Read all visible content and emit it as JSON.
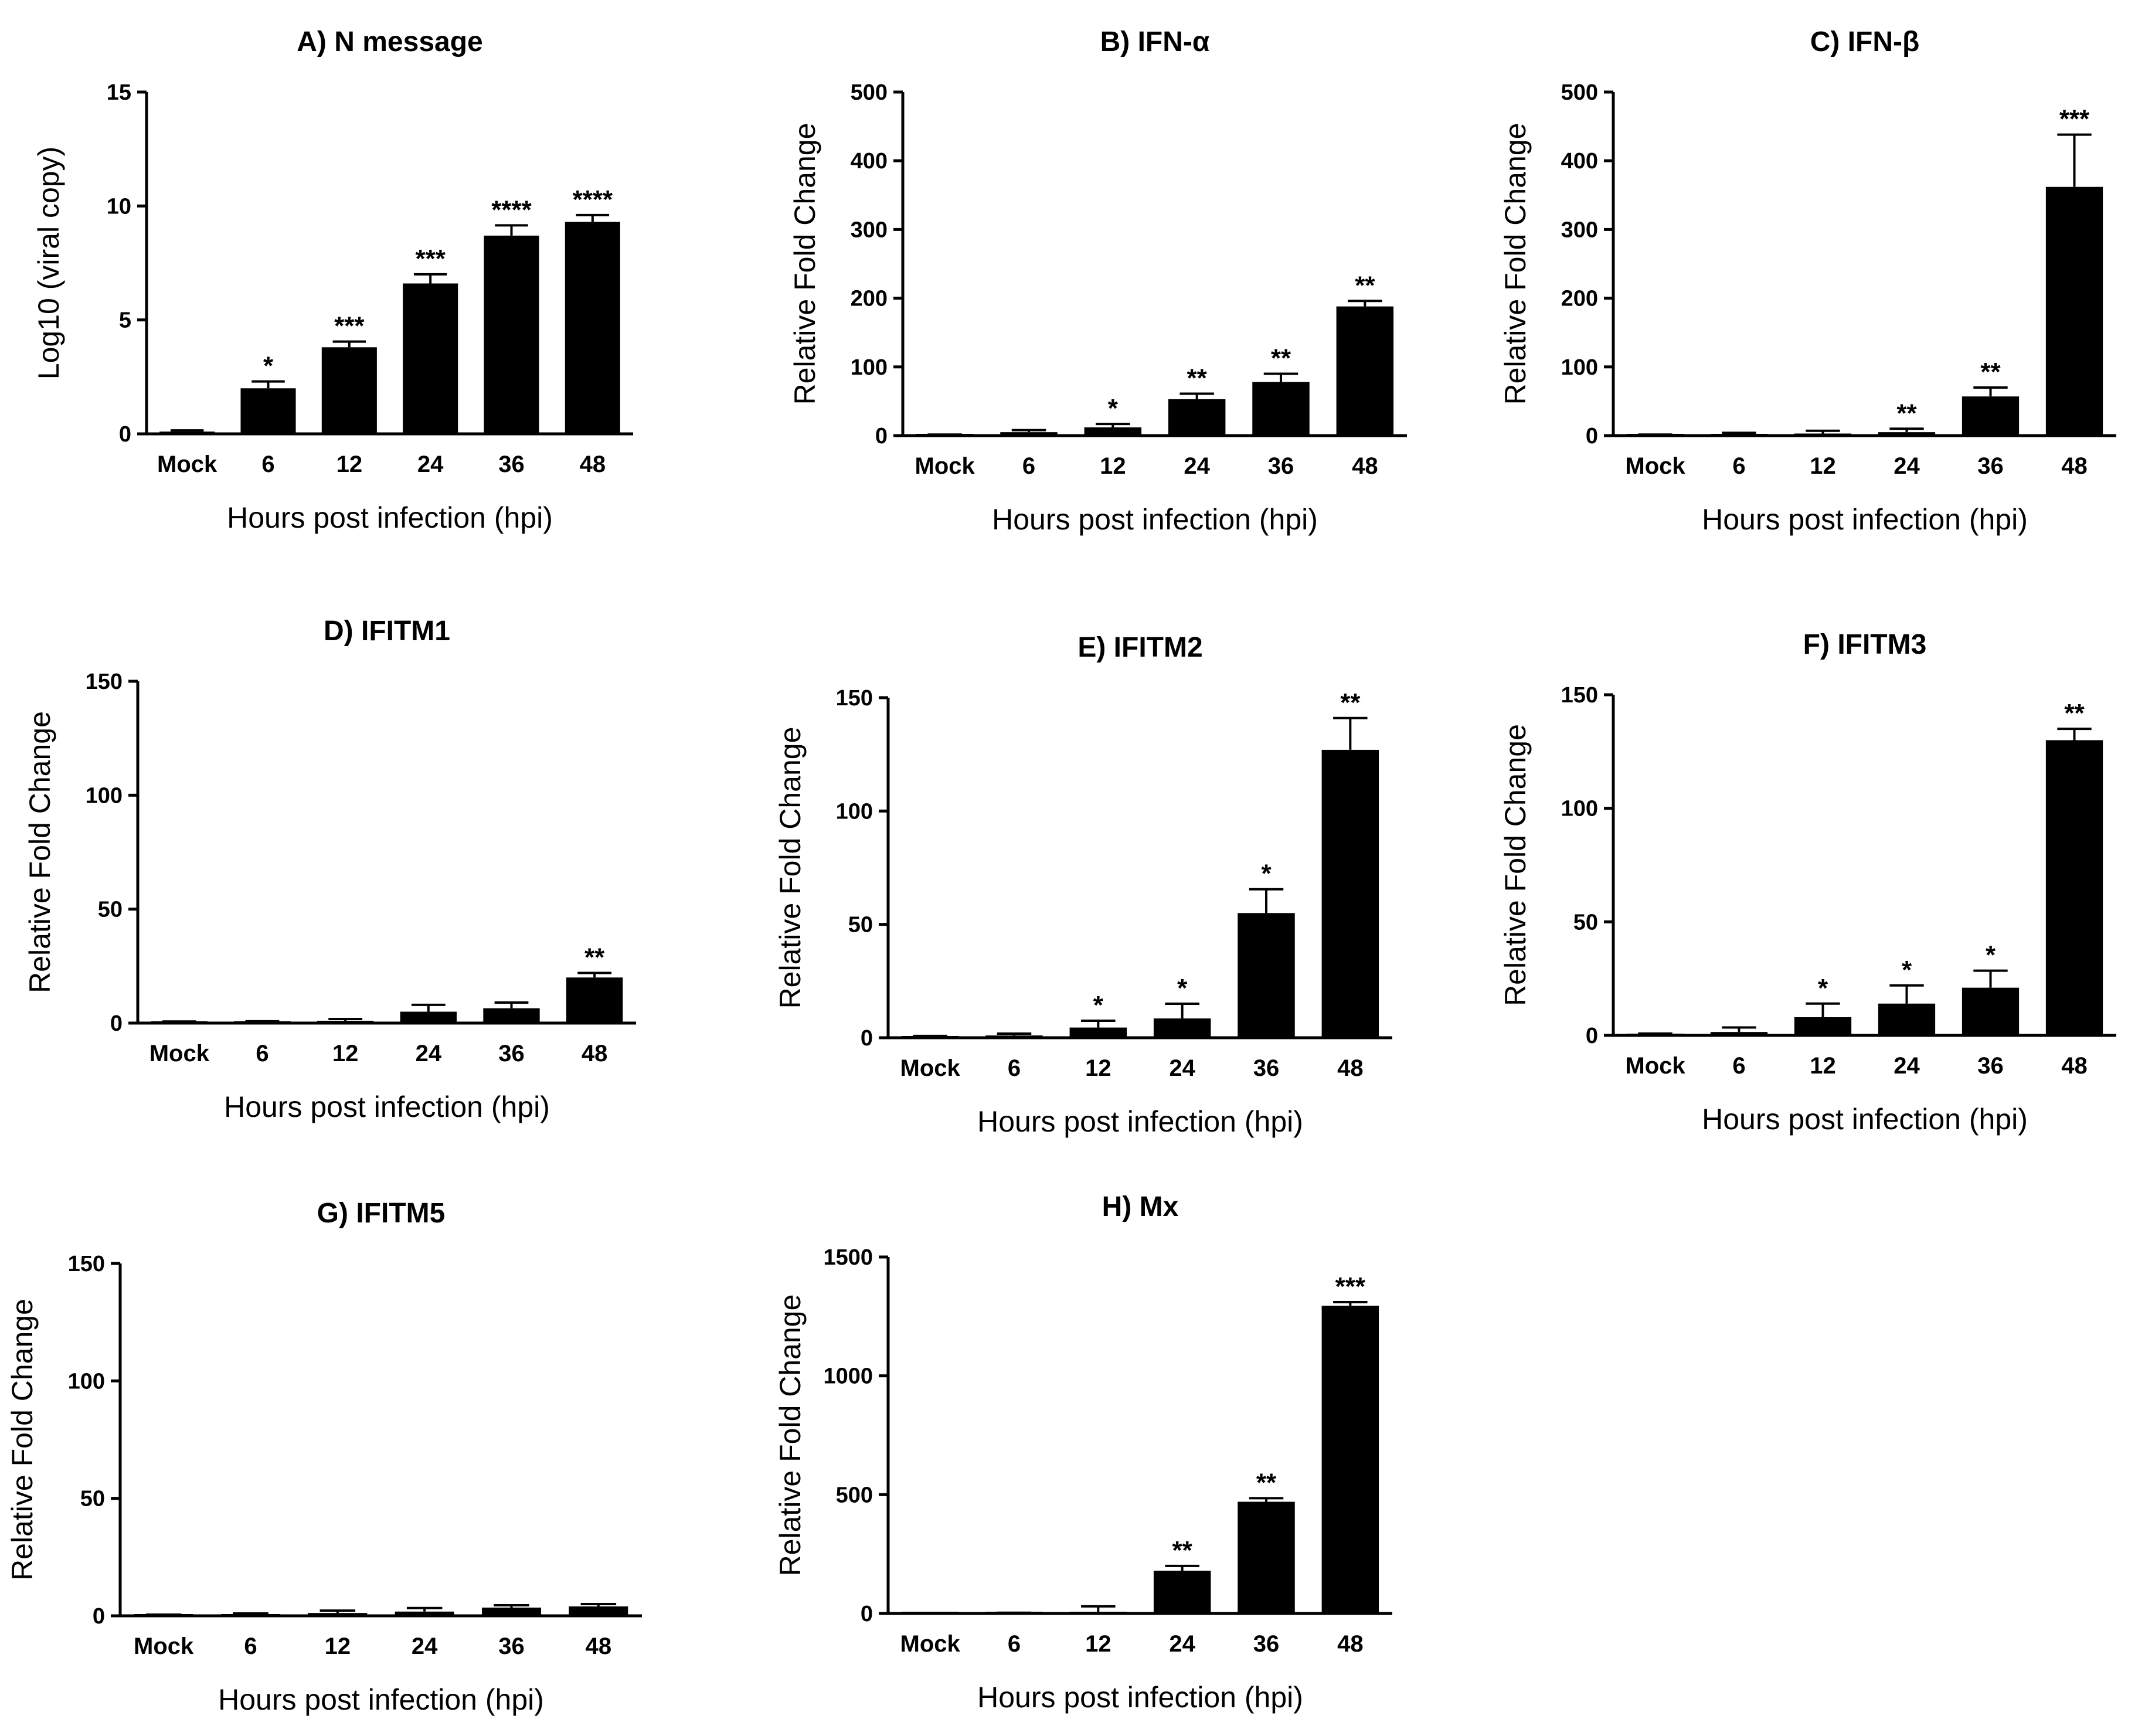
{
  "chart_data": [
    {
      "id": "A",
      "type": "bar",
      "title": "A) N message",
      "xlabel": "Hours post infection (hpi)",
      "ylabel": "Log10 (viral copy)",
      "categories": [
        "Mock",
        "6",
        "12",
        "24",
        "36",
        "48"
      ],
      "values": [
        0.1,
        2.0,
        3.8,
        6.6,
        8.7,
        9.3
      ],
      "errors": [
        0.05,
        0.3,
        0.25,
        0.4,
        0.45,
        0.3
      ],
      "significance": [
        "",
        "*",
        "***",
        "***",
        "****",
        "****"
      ],
      "ylim": [
        0,
        15
      ],
      "yticks": [
        0,
        5,
        10,
        15
      ]
    },
    {
      "id": "B",
      "type": "bar",
      "title": "B) IFN-α",
      "xlabel": "Hours post infection (hpi)",
      "ylabel": "Relative Fold Change",
      "categories": [
        "Mock",
        "6",
        "12",
        "24",
        "36",
        "48"
      ],
      "values": [
        1,
        5,
        12,
        53,
        78,
        188
      ],
      "errors": [
        0.5,
        3,
        5,
        8,
        12,
        8
      ],
      "significance": [
        "",
        "",
        "*",
        "**",
        "**",
        "**"
      ],
      "ylim": [
        0,
        500
      ],
      "yticks": [
        0,
        100,
        200,
        300,
        400,
        500
      ]
    },
    {
      "id": "C",
      "type": "bar",
      "title": "C) IFN-β",
      "xlabel": "Hours post infection (hpi)",
      "ylabel": "Relative Fold Change",
      "categories": [
        "Mock",
        "6",
        "12",
        "24",
        "36",
        "48"
      ],
      "values": [
        1,
        2,
        3,
        5,
        57,
        362
      ],
      "errors": [
        0.5,
        2,
        4,
        5,
        13,
        76
      ],
      "significance": [
        "",
        "",
        "",
        "**",
        "**",
        "***"
      ],
      "ylim": [
        0,
        500
      ],
      "yticks": [
        0,
        100,
        200,
        300,
        400,
        500
      ]
    },
    {
      "id": "D",
      "type": "bar",
      "title": "D) IFITM1",
      "xlabel": "Hours post infection (hpi)",
      "ylabel": "Relative Fold Change",
      "categories": [
        "Mock",
        "6",
        "12",
        "24",
        "36",
        "48"
      ],
      "values": [
        0.5,
        0.5,
        1,
        5,
        6.5,
        20
      ],
      "errors": [
        0.2,
        0.3,
        0.8,
        3,
        2.5,
        2
      ],
      "significance": [
        "",
        "",
        "",
        "",
        "",
        "**"
      ],
      "ylim": [
        0,
        150
      ],
      "yticks": [
        0,
        50,
        100,
        150
      ]
    },
    {
      "id": "E",
      "type": "bar",
      "title": "E) IFITM2",
      "xlabel": "Hours post infection (hpi)",
      "ylabel": "Relative Fold Change",
      "categories": [
        "Mock",
        "6",
        "12",
        "24",
        "36",
        "48"
      ],
      "values": [
        0.5,
        1,
        4.5,
        8.5,
        55,
        127
      ],
      "errors": [
        0.3,
        0.8,
        3,
        6.5,
        10.5,
        14
      ],
      "significance": [
        "",
        "",
        "*",
        "*",
        "*",
        "**"
      ],
      "ylim": [
        0,
        150
      ],
      "yticks": [
        0,
        50,
        100,
        150
      ]
    },
    {
      "id": "F",
      "type": "bar",
      "title": "F) IFITM3",
      "xlabel": "Hours post infection (hpi)",
      "ylabel": "Relative Fold Change",
      "categories": [
        "Mock",
        "6",
        "12",
        "24",
        "36",
        "48"
      ],
      "values": [
        0.5,
        1.5,
        8,
        14,
        21,
        130
      ],
      "errors": [
        0.3,
        2,
        6,
        8,
        7.5,
        5
      ],
      "significance": [
        "",
        "",
        "*",
        "*",
        "*",
        "**"
      ],
      "ylim": [
        0,
        150
      ],
      "yticks": [
        0,
        50,
        100,
        150
      ]
    },
    {
      "id": "G",
      "type": "bar",
      "title": "G) IFITM5",
      "xlabel": "Hours post infection (hpi)",
      "ylabel": "Relative Fold Change",
      "categories": [
        "Mock",
        "6",
        "12",
        "24",
        "36",
        "48"
      ],
      "values": [
        0.3,
        0.5,
        1.2,
        1.8,
        3.5,
        4
      ],
      "errors": [
        0.2,
        0.5,
        1,
        1.5,
        1,
        1
      ],
      "significance": [
        "",
        "",
        "",
        "",
        "",
        ""
      ],
      "ylim": [
        0,
        150
      ],
      "yticks": [
        0,
        50,
        100,
        150
      ]
    },
    {
      "id": "H",
      "type": "bar",
      "title": "H) Mx",
      "xlabel": "Hours post infection (hpi)",
      "ylabel": "Relative Fold Change",
      "categories": [
        "Mock",
        "6",
        "12",
        "24",
        "36",
        "48"
      ],
      "values": [
        1,
        2,
        5,
        180,
        470,
        1295
      ],
      "errors": [
        0.5,
        1,
        25,
        20,
        15,
        15
      ],
      "significance": [
        "",
        "",
        "",
        "**",
        "**",
        "***"
      ],
      "ylim": [
        0,
        1500
      ],
      "yticks": [
        0,
        500,
        1000,
        1500
      ]
    }
  ]
}
